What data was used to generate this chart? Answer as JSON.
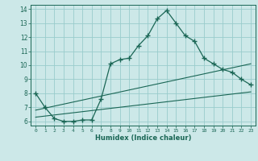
{
  "xlabel": "Humidex (Indice chaleur)",
  "bg_color": "#cce8e8",
  "grid_color": "#99cccc",
  "line_color": "#1a6655",
  "xlim": [
    -0.5,
    23.5
  ],
  "ylim": [
    5.7,
    14.3
  ],
  "yticks": [
    6,
    7,
    8,
    9,
    10,
    11,
    12,
    13,
    14
  ],
  "xticks": [
    0,
    1,
    2,
    3,
    4,
    5,
    6,
    7,
    8,
    9,
    10,
    11,
    12,
    13,
    14,
    15,
    16,
    17,
    18,
    19,
    20,
    21,
    22,
    23
  ],
  "line1_x": [
    0,
    1,
    2,
    3,
    4,
    5,
    6,
    7,
    8,
    9,
    10,
    11,
    12,
    13,
    14,
    15,
    16,
    17,
    18,
    19,
    20,
    21,
    22,
    23
  ],
  "line1_y": [
    8.0,
    7.0,
    6.2,
    6.0,
    6.0,
    6.1,
    6.1,
    7.6,
    10.1,
    10.4,
    10.5,
    11.4,
    12.1,
    13.3,
    13.9,
    13.0,
    12.1,
    11.7,
    10.5,
    10.1,
    9.7,
    9.5,
    9.0,
    8.6
  ],
  "line2_x": [
    0,
    23
  ],
  "line2_y": [
    6.3,
    8.1
  ],
  "line3_x": [
    0,
    23
  ],
  "line3_y": [
    6.8,
    10.1
  ],
  "marker": "+"
}
